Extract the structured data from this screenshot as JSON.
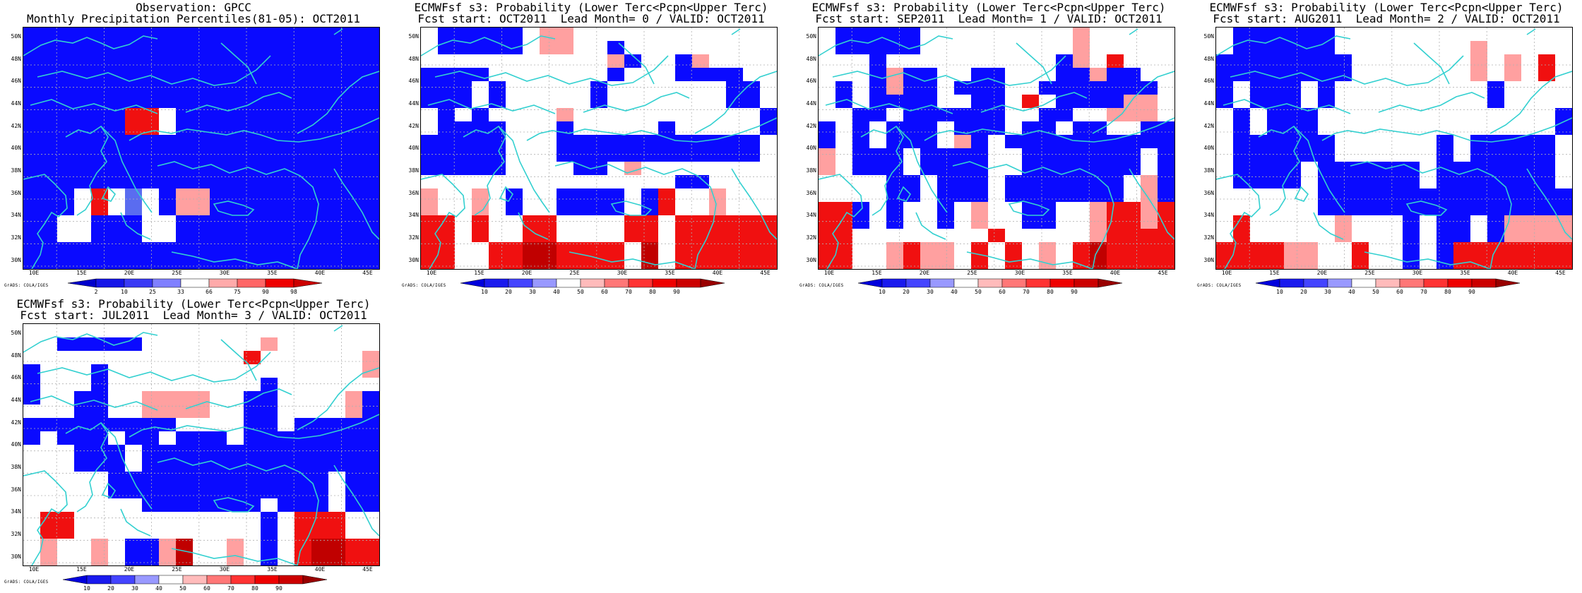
{
  "panels": [
    {
      "title_line1": "Observation: GPCC",
      "title_line2": "Monthly Precipitation Percentiles(81-05): OCT2011",
      "kind": "obs",
      "cbar_labels": [
        "2",
        "10",
        "25",
        "33",
        "66",
        "75",
        "90",
        "98"
      ],
      "cbar_colors": [
        "#0000cc",
        "#1515e8",
        "#3a3af5",
        "#8080ff",
        "#ffffff",
        "#ffaaaa",
        "#ff6666",
        "#ee0000",
        "#cc0000"
      ],
      "grid": [
        "BBBBBBBBBBBBBBBBBBBBB",
        "BBBBBBBBBBBBBBBBBBBBB",
        "BBBBBBBBBBBBBBBBBBBBB",
        "BBBBBBBBBBBBBBBBBBBBB",
        "BBBBBBBBBBBBBBBBBBBBB",
        "BBBBBBBBBBBBBBBBBBBBB",
        "BBBBBBRRWBBBBBBBBBBBB",
        "BBBBBBRRWBBBBBBBBBBBB",
        "BBBBBBBBBBBBBBBBBBBBB",
        "BBBBBBBBBBBBBBBBBBBBB",
        "BBBBBBBBBBBBBBBBBBBBB",
        "BBBBBBBBBBBBBBBBBBBBB",
        "BBBWRWLWBPPBBBBBBBBBB",
        "BBBWRWLWBPPBBBBBBBBBB",
        "BBWWBBBWWBBBBBBBBBBBB",
        "BBWWBBBWWBBBBBBBBBBBB",
        "BBBBBBBBBBBBBBBBBBBBB",
        "BBBBBBBBBBBBBBBBBBBBB"
      ]
    },
    {
      "title_line1": "ECMWFsf s3: Probability (Lower Terc<Pcpn<Upper Terc)",
      "title_line2": "Fcst start: OCT2011  Lead Month= 0 / VALID: OCT2011",
      "kind": "fcst",
      "cbar_labels": [
        "10",
        "20",
        "30",
        "40",
        "50",
        "60",
        "70",
        "80",
        "90"
      ],
      "cbar_colors": [
        "#0000dd",
        "#1a1aee",
        "#4444ff",
        "#9999ff",
        "#ffffff",
        "#ffbbbb",
        "#ff7777",
        "#ff3333",
        "#ee0000",
        "#cc0000",
        "#990000"
      ],
      "grid": [
        "WBBBBBWPPWWWWWWWWWWWW",
        "WBBBBBWPPWWBWWWWWWWWW",
        "WWWWWWWWWWWPBWWBPWWWW",
        "BBBBWWWWWWWBWWWBBBBWW",
        "BBBWBWWWWWBWWWWWWWBBW",
        "BBBWBWWWWWBWWWWWWWBBW",
        "WBWBWWWWPWWWWWWWWWWWB",
        "WBBBBWWWBWWWWWBWWWWWB",
        "BBBBBWWWBBBBBBBBBBBBW",
        "BBBBBWWWBBBBBBBBBBBBW",
        "BBBBBWWWWBBWPWWWWWWWW",
        "WWWWWWWWWWWWWWWBBWWWW",
        "PWWPWBWWBBBBWBRWWPWWW",
        "PWWPWBWWBBBBWBRWWPWWW",
        "RRWRWWRRWWWWRRWRRRRRR",
        "RRWRWWRRWWWWRRWRRRRRR",
        "RRWWRRDDRRRRWDWRRRRRR",
        "RRWWRRDDRRRRWDWRRRRRR"
      ]
    },
    {
      "title_line1": "ECMWFsf s3: Probability (Lower Terc<Pcpn<Upper Terc)",
      "title_line2": "Fcst start: SEP2011  Lead Month= 1 / VALID: OCT2011",
      "kind": "fcst",
      "cbar_labels": [
        "10",
        "20",
        "30",
        "40",
        "50",
        "60",
        "70",
        "80",
        "90"
      ],
      "cbar_colors": [
        "#0000dd",
        "#1a1aee",
        "#4444ff",
        "#9999ff",
        "#ffffff",
        "#ffbbbb",
        "#ff7777",
        "#ff3333",
        "#ee0000",
        "#cc0000",
        "#990000"
      ],
      "grid": [
        "WBBBBBWWWWWWWWWPWWWWW",
        "WBBBBBWWWWWWWWWPWWWWW",
        "WWWBWWWWWWWWWWBPWRWWW",
        "WWWBPBBWWBBWWWBBPBBWW",
        "WBWBPBBWBBBWWBBBBBBBW",
        "WBWBBBBWWBBWRWBBBBPPW",
        "WWBBWBBBBBBWWBBWWPPPW",
        "BWBWBBBWBBBWBBWBBWWBB",
        "BWBWBBBWPBWBBBBBBBBBB",
        "PWBBBWBBBBWWBBBBBBBWB",
        "PWBBBWBBBBWWBBBBBBBWB",
        "WWWWBBWBBBWBBBBBBBWPB",
        "WWWWBBWBBBWBBBBBBBWPB",
        "RRBWBWWBWPWWBBWWPRRPR",
        "RRBWBWWBWPWWBBWWPRRPR",
        "RRWWWWWWWWRWWWWWPRRRR",
        "RRWWPRPPWRWRWPWRDRRRR",
        "RRWWPRPPWRWRWPWRDRRRR"
      ]
    },
    {
      "title_line1": "ECMWFsf s3: Probability (Lower Terc<Pcpn<Upper Terc)",
      "title_line2": "Fcst start: AUG2011  Lead Month= 2 / VALID: OCT2011",
      "kind": "fcst",
      "cbar_labels": [
        "10",
        "20",
        "30",
        "40",
        "50",
        "60",
        "70",
        "80",
        "90"
      ],
      "cbar_colors": [
        "#0000dd",
        "#1a1aee",
        "#4444ff",
        "#9999ff",
        "#ffffff",
        "#ffbbbb",
        "#ff7777",
        "#ff3333",
        "#ee0000",
        "#cc0000",
        "#990000"
      ],
      "grid": [
        "WBBBBBBWWWWWWWWWWWWWW",
        "WBBBBBBWWWWWWWWPWWWWW",
        "BBBBBBBBWWWWWWWPWPWRW",
        "BBBBBBBBWWWWWWWPWPWRW",
        "BWBBBWBWWWWWWWWWBWWWW",
        "BWBBBWBWWWWWWWWWBWWWW",
        "WBWBBBWWWWWWWWWWWWWWB",
        "WBWBBBWWWWWWWWWWWWWWB",
        "WBBBBBBWWWWWWBWBBBBBW",
        "WBBBBBBWWWWWWBWBBBBBW",
        "WBBBBWBBBBBBWBBBBBBBW",
        "WBBBBWBBBBBBWBBBBBBBW",
        "WWWWWWBBBBBBBBBBBBBBB",
        "WWWWWWBBBBBBBBBBBBBBB",
        "WRWWWWWPWWWBWBBWBPPPP",
        "WRWWWWWPWWWBWBBWBPPPP",
        "RRRRPPWWRWWBWBRRRRRRR",
        "RRRRPPWWRWWBWBRRRRRRR"
      ]
    },
    {
      "title_line1": "ECMWFsf s3: Probability (Lower Terc<Pcpn<Upper Terc)",
      "title_line2": "Fcst start: JUL2011  Lead Month= 3 / VALID: OCT2011",
      "kind": "fcst",
      "cbar_labels": [
        "10",
        "20",
        "30",
        "40",
        "50",
        "60",
        "70",
        "80",
        "90"
      ],
      "cbar_colors": [
        "#0000dd",
        "#1a1aee",
        "#4444ff",
        "#9999ff",
        "#ffffff",
        "#ffbbbb",
        "#ff7777",
        "#ff3333",
        "#ee0000",
        "#cc0000",
        "#990000"
      ],
      "grid": [
        "WWWWWWWWWWWWWWWWWWWWW",
        "WWBBBBBWWWWWWWPWWWWWW",
        "WWWWWWWWWWWWWRWWWWWWP",
        "BWWWBWWWWWWWWWWWWWWWP",
        "BWWWBWWWWWWWWWBWWWWWW",
        "BWWBBWWPPPPWWBBWWWWPB",
        "WWWBBWWPPPPWWBBWWWWPB",
        "BBBBBBBBBWWWWBBWBBBBB",
        "BWBBBWBBWBBBWBBBBBBBB",
        "WWWBBBWBBBBBBBBBBBBBB",
        "WWWBBBWBBBBBBBBBBBBBB",
        "WWWWWBBBBBBBBBBBBBWBB",
        "WWWWWBBBBBBBBBBBBBWBB",
        "WWWWWWWBBBBBBBWBBBWBB",
        "WRRWWWWWWWWWWWBWRRRWW",
        "WRRWWWWWWWWWWWBWRRRWW",
        "WPWWPWBBPDWWPWBWRDDRR",
        "WPWWPWBBPDWWPWBWRDDRR"
      ]
    }
  ],
  "lat_labels": [
    "50N",
    "48N",
    "46N",
    "44N",
    "42N",
    "40N",
    "38N",
    "36N",
    "34N",
    "32N",
    "30N"
  ],
  "lon_labels": [
    "10E",
    "15E",
    "20E",
    "25E",
    "30E",
    "35E",
    "40E",
    "45E"
  ],
  "credit": "GrADS: COLA/IGES",
  "colors": {
    "B": "#0a0aff",
    "L": "#5a6cf0",
    "W": "#ffffff",
    "P": "#ffa0a0",
    "R": "#f01010",
    "D": "#c00000",
    "coast": "#33d0d0",
    "grid": "#b0b0b0"
  }
}
